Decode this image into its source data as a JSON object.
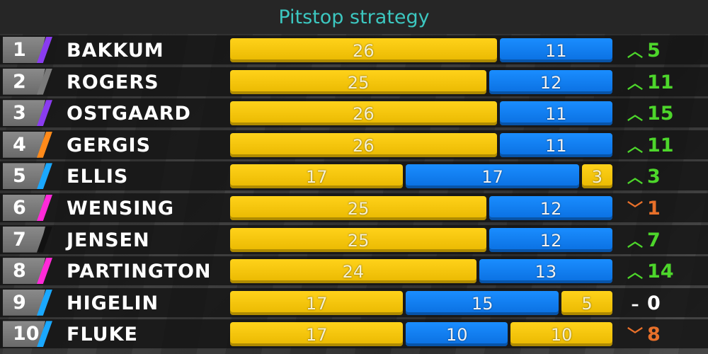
{
  "title": "Pitstop strategy",
  "colors": {
    "yellow_tyre": "#ffd21a",
    "blue_tyre": "#1a8dff",
    "gain": "#4dd62b",
    "loss": "#e8702a",
    "title": "#3cc7c0"
  },
  "total_laps": 37,
  "rows": [
    {
      "pos": "1",
      "name": "BAKKUM",
      "team_color": "#8a3cf0",
      "stints": [
        {
          "laps": 26,
          "tyre": "yellow"
        },
        {
          "laps": 11,
          "tyre": "blue"
        }
      ],
      "dir": "up",
      "arrow": "^",
      "change": "5"
    },
    {
      "pos": "2",
      "name": "ROGERS",
      "team_color": "#7a7a7a",
      "stints": [
        {
          "laps": 25,
          "tyre": "yellow"
        },
        {
          "laps": 12,
          "tyre": "blue"
        }
      ],
      "dir": "up",
      "arrow": "^",
      "change": "11"
    },
    {
      "pos": "3",
      "name": "OSTGAARD",
      "team_color": "#8a3cf0",
      "stints": [
        {
          "laps": 26,
          "tyre": "yellow"
        },
        {
          "laps": 11,
          "tyre": "blue"
        }
      ],
      "dir": "up",
      "arrow": "^",
      "change": "15"
    },
    {
      "pos": "4",
      "name": "GERGIS",
      "team_color": "#ff8a1a",
      "stints": [
        {
          "laps": 26,
          "tyre": "yellow"
        },
        {
          "laps": 11,
          "tyre": "blue"
        }
      ],
      "dir": "up",
      "arrow": "^",
      "change": "11"
    },
    {
      "pos": "5",
      "name": "ELLIS",
      "team_color": "#1aa8ff",
      "stints": [
        {
          "laps": 17,
          "tyre": "yellow"
        },
        {
          "laps": 17,
          "tyre": "blue"
        },
        {
          "laps": 3,
          "tyre": "yellow"
        }
      ],
      "dir": "up",
      "arrow": "^",
      "change": "3"
    },
    {
      "pos": "6",
      "name": "WENSING",
      "team_color": "#ff2ad8",
      "stints": [
        {
          "laps": 25,
          "tyre": "yellow"
        },
        {
          "laps": 12,
          "tyre": "blue"
        }
      ],
      "dir": "down",
      "arrow": "v",
      "change": "1"
    },
    {
      "pos": "7",
      "name": "JENSEN",
      "team_color": "#111111",
      "stints": [
        {
          "laps": 25,
          "tyre": "yellow"
        },
        {
          "laps": 12,
          "tyre": "blue"
        }
      ],
      "dir": "up",
      "arrow": "^",
      "change": "7"
    },
    {
      "pos": "8",
      "name": "PARTINGTON",
      "team_color": "#ff2ad8",
      "stints": [
        {
          "laps": 24,
          "tyre": "yellow"
        },
        {
          "laps": 13,
          "tyre": "blue"
        }
      ],
      "dir": "up",
      "arrow": "^",
      "change": "14"
    },
    {
      "pos": "9",
      "name": "HIGELIN",
      "team_color": "#1aa8ff",
      "stints": [
        {
          "laps": 17,
          "tyre": "yellow"
        },
        {
          "laps": 15,
          "tyre": "blue"
        },
        {
          "laps": 5,
          "tyre": "yellow"
        }
      ],
      "dir": "same",
      "arrow": "-",
      "change": "0"
    },
    {
      "pos": "10",
      "name": "FLUKE",
      "team_color": "#1aa8ff",
      "stints": [
        {
          "laps": 17,
          "tyre": "yellow"
        },
        {
          "laps": 10,
          "tyre": "blue"
        },
        {
          "laps": 10,
          "tyre": "yellow"
        }
      ],
      "dir": "down",
      "arrow": "v",
      "change": "8"
    }
  ]
}
